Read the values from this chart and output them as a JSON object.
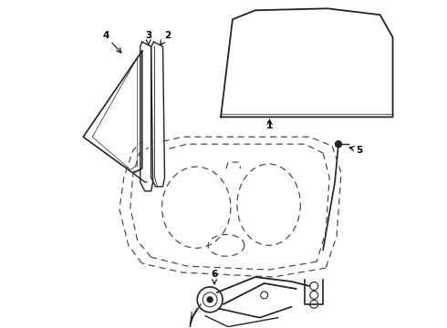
{
  "background_color": "#ffffff",
  "line_color": "#222222",
  "dashed_color": "#444444",
  "label_color": "#000000",
  "figsize": [
    4.9,
    3.6
  ],
  "dpi": 100
}
